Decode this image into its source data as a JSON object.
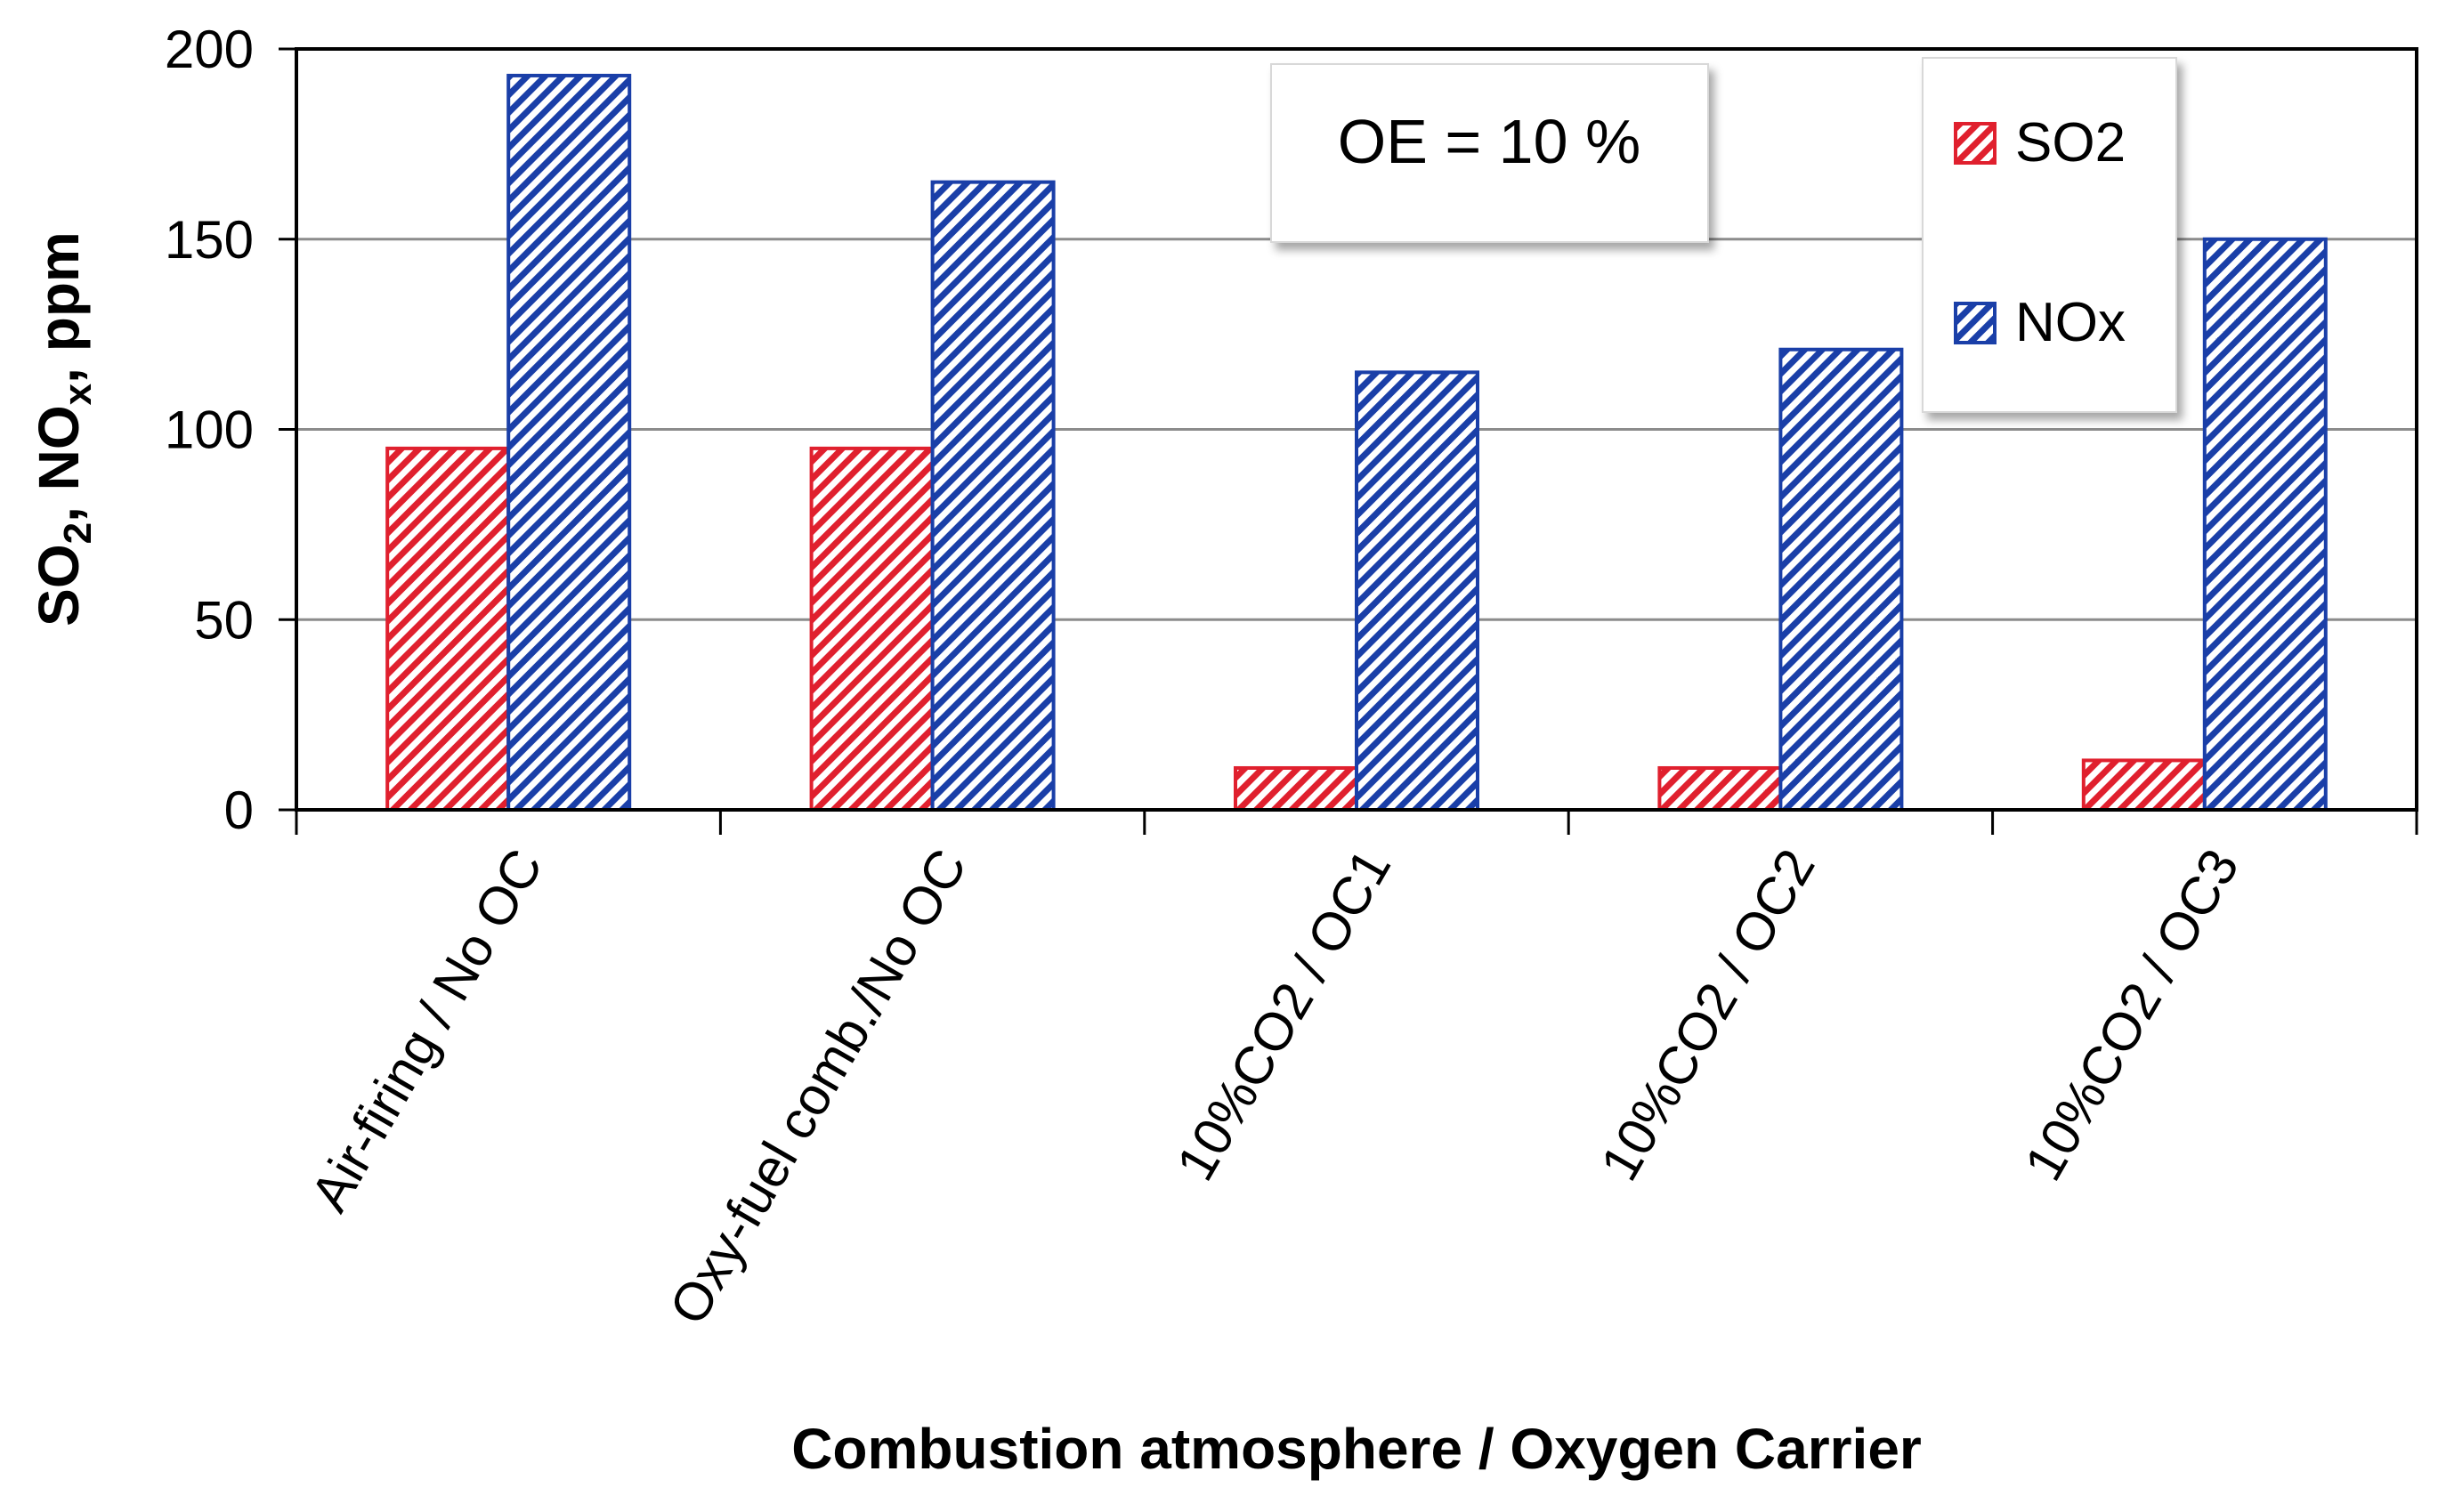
{
  "chart_data": {
    "type": "bar",
    "title": "",
    "xlabel": "Combustion atmosphere / Oxygen Carrier",
    "ylabel_parts": [
      "SO",
      "2",
      ", NO",
      "x",
      ", ppm"
    ],
    "ylim": [
      0,
      200
    ],
    "yticks": [
      0,
      50,
      100,
      150,
      200
    ],
    "grid": true,
    "legend_position": "top-right",
    "categories": [
      "Air-firing / No OC",
      "Oxy-fuel comb./No OC",
      "10%CO2 / OC1",
      "10%CO2 / OC2",
      "10%CO2 / OC3"
    ],
    "series": [
      {
        "name": "SO2",
        "values": [
          95,
          95,
          11,
          11,
          13
        ],
        "color": "#e0202e"
      },
      {
        "name": "NOx",
        "values": [
          193,
          165,
          115,
          121,
          150
        ],
        "color": "#1a3fa8"
      }
    ],
    "annotation": "OE = 10 %"
  }
}
